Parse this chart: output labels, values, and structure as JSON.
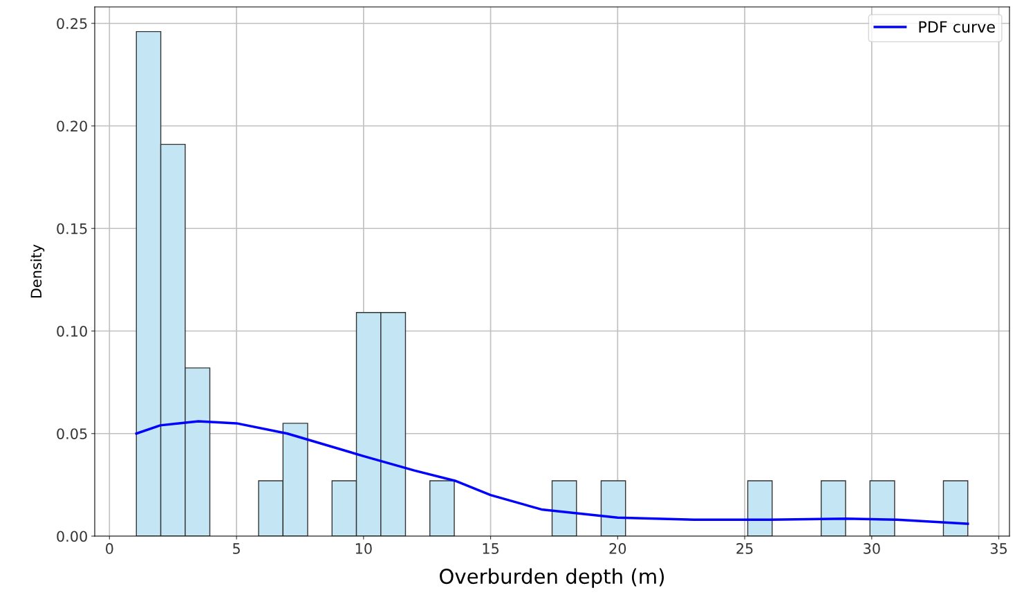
{
  "chart_data": {
    "type": "histogram",
    "xlabel": "Overburden depth (m)",
    "ylabel": "Density",
    "bins": [
      1.06,
      2.02,
      2.98,
      3.95,
      4.91,
      5.87,
      6.83,
      7.8,
      8.76,
      9.72,
      10.68,
      11.65,
      12.61,
      13.57,
      14.53,
      15.5,
      16.46,
      17.42,
      18.38,
      19.35,
      20.31,
      21.27,
      22.23,
      23.2,
      24.16,
      25.12,
      26.08,
      27.05,
      28.01,
      28.97,
      29.93,
      30.9,
      31.86,
      32.82,
      33.78
    ],
    "values": [
      0.246,
      0.191,
      0.082,
      0,
      0,
      0.027,
      0.055,
      0,
      0.027,
      0.109,
      0.109,
      0,
      0.027,
      0,
      0,
      0,
      0,
      0.027,
      0,
      0.027,
      0,
      0,
      0,
      0,
      0,
      0.027,
      0,
      0,
      0.027,
      0,
      0.027,
      0,
      0,
      0.027
    ],
    "color": "#c4e5f3",
    "series": [
      {
        "type": "line",
        "name": "PDF curve",
        "color": "#0000ff",
        "x": [
          1.06,
          2,
          3.5,
          5,
          7,
          10,
          12,
          13.6,
          15,
          17,
          20,
          23,
          26,
          29,
          31,
          33.78
        ],
        "values": [
          0.05,
          0.054,
          0.056,
          0.055,
          0.05,
          0.039,
          0.032,
          0.027,
          0.02,
          0.013,
          0.009,
          0.008,
          0.008,
          0.0085,
          0.008,
          0.006
        ]
      }
    ],
    "xlim": [
      -0.58,
      35.42
    ],
    "xticks": [
      0,
      5,
      10,
      15,
      20,
      25,
      30,
      35
    ],
    "ylim": [
      0,
      0.258
    ],
    "yticks": [
      {
        "value": 0,
        "label": "0.00"
      },
      {
        "value": 0.05,
        "label": "0.05"
      },
      {
        "value": 0.1,
        "label": "0.10"
      },
      {
        "value": 0.15,
        "label": "0.15"
      },
      {
        "value": 0.2,
        "label": "0.20"
      },
      {
        "value": 0.25,
        "label": "0.25"
      }
    ],
    "grid": true,
    "legend": "top right"
  }
}
